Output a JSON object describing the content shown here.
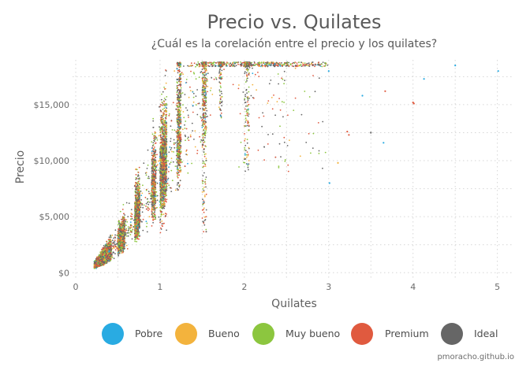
{
  "chart_data": {
    "type": "scatter",
    "title": "Precio vs. Quilates",
    "subtitle": "¿Cuál es la corelación entre el precio y los quilates?",
    "xlabel": "Quilates",
    "ylabel": "Precio",
    "caption": "pmoracho.github.io",
    "xlim": [
      0,
      5.2
    ],
    "ylim": [
      -400,
      19000
    ],
    "x_ticks": [
      0,
      1,
      2,
      3,
      4,
      5
    ],
    "x_tick_labels": [
      "0",
      "1",
      "2",
      "3",
      "4",
      "5"
    ],
    "y_ticks": [
      0,
      5000,
      10000,
      15000
    ],
    "y_tick_labels": [
      "$0",
      "$5,000",
      "$10,000",
      "$15,000"
    ],
    "grid": true,
    "legend_position": "bottom",
    "series": [
      {
        "name": "Pobre",
        "color": "#29abe2"
      },
      {
        "name": "Bueno",
        "color": "#f3b33d"
      },
      {
        "name": "Muy bueno",
        "color": "#8cc63f"
      },
      {
        "name": "Premium",
        "color": "#e05a3f"
      },
      {
        "name": "Ideal",
        "color": "#666666"
      }
    ],
    "outliers": [
      {
        "x": 3.0,
        "y": 18000,
        "series": "Pobre"
      },
      {
        "x": 3.01,
        "y": 8000,
        "series": "Pobre"
      },
      {
        "x": 3.4,
        "y": 15800,
        "series": "Pobre"
      },
      {
        "x": 3.5,
        "y": 12500,
        "series": "Ideal"
      },
      {
        "x": 3.65,
        "y": 11600,
        "series": "Pobre"
      },
      {
        "x": 3.67,
        "y": 16200,
        "series": "Premium"
      },
      {
        "x": 4.0,
        "y": 15200,
        "series": "Premium"
      },
      {
        "x": 4.01,
        "y": 15100,
        "series": "Premium"
      },
      {
        "x": 4.13,
        "y": 17300,
        "series": "Pobre"
      },
      {
        "x": 4.5,
        "y": 18500,
        "series": "Pobre"
      },
      {
        "x": 5.01,
        "y": 18000,
        "series": "Pobre"
      },
      {
        "x": 3.22,
        "y": 12600,
        "series": "Premium"
      },
      {
        "x": 3.24,
        "y": 12300,
        "series": "Premium"
      },
      {
        "x": 3.11,
        "y": 9800,
        "series": "Bueno"
      }
    ]
  }
}
